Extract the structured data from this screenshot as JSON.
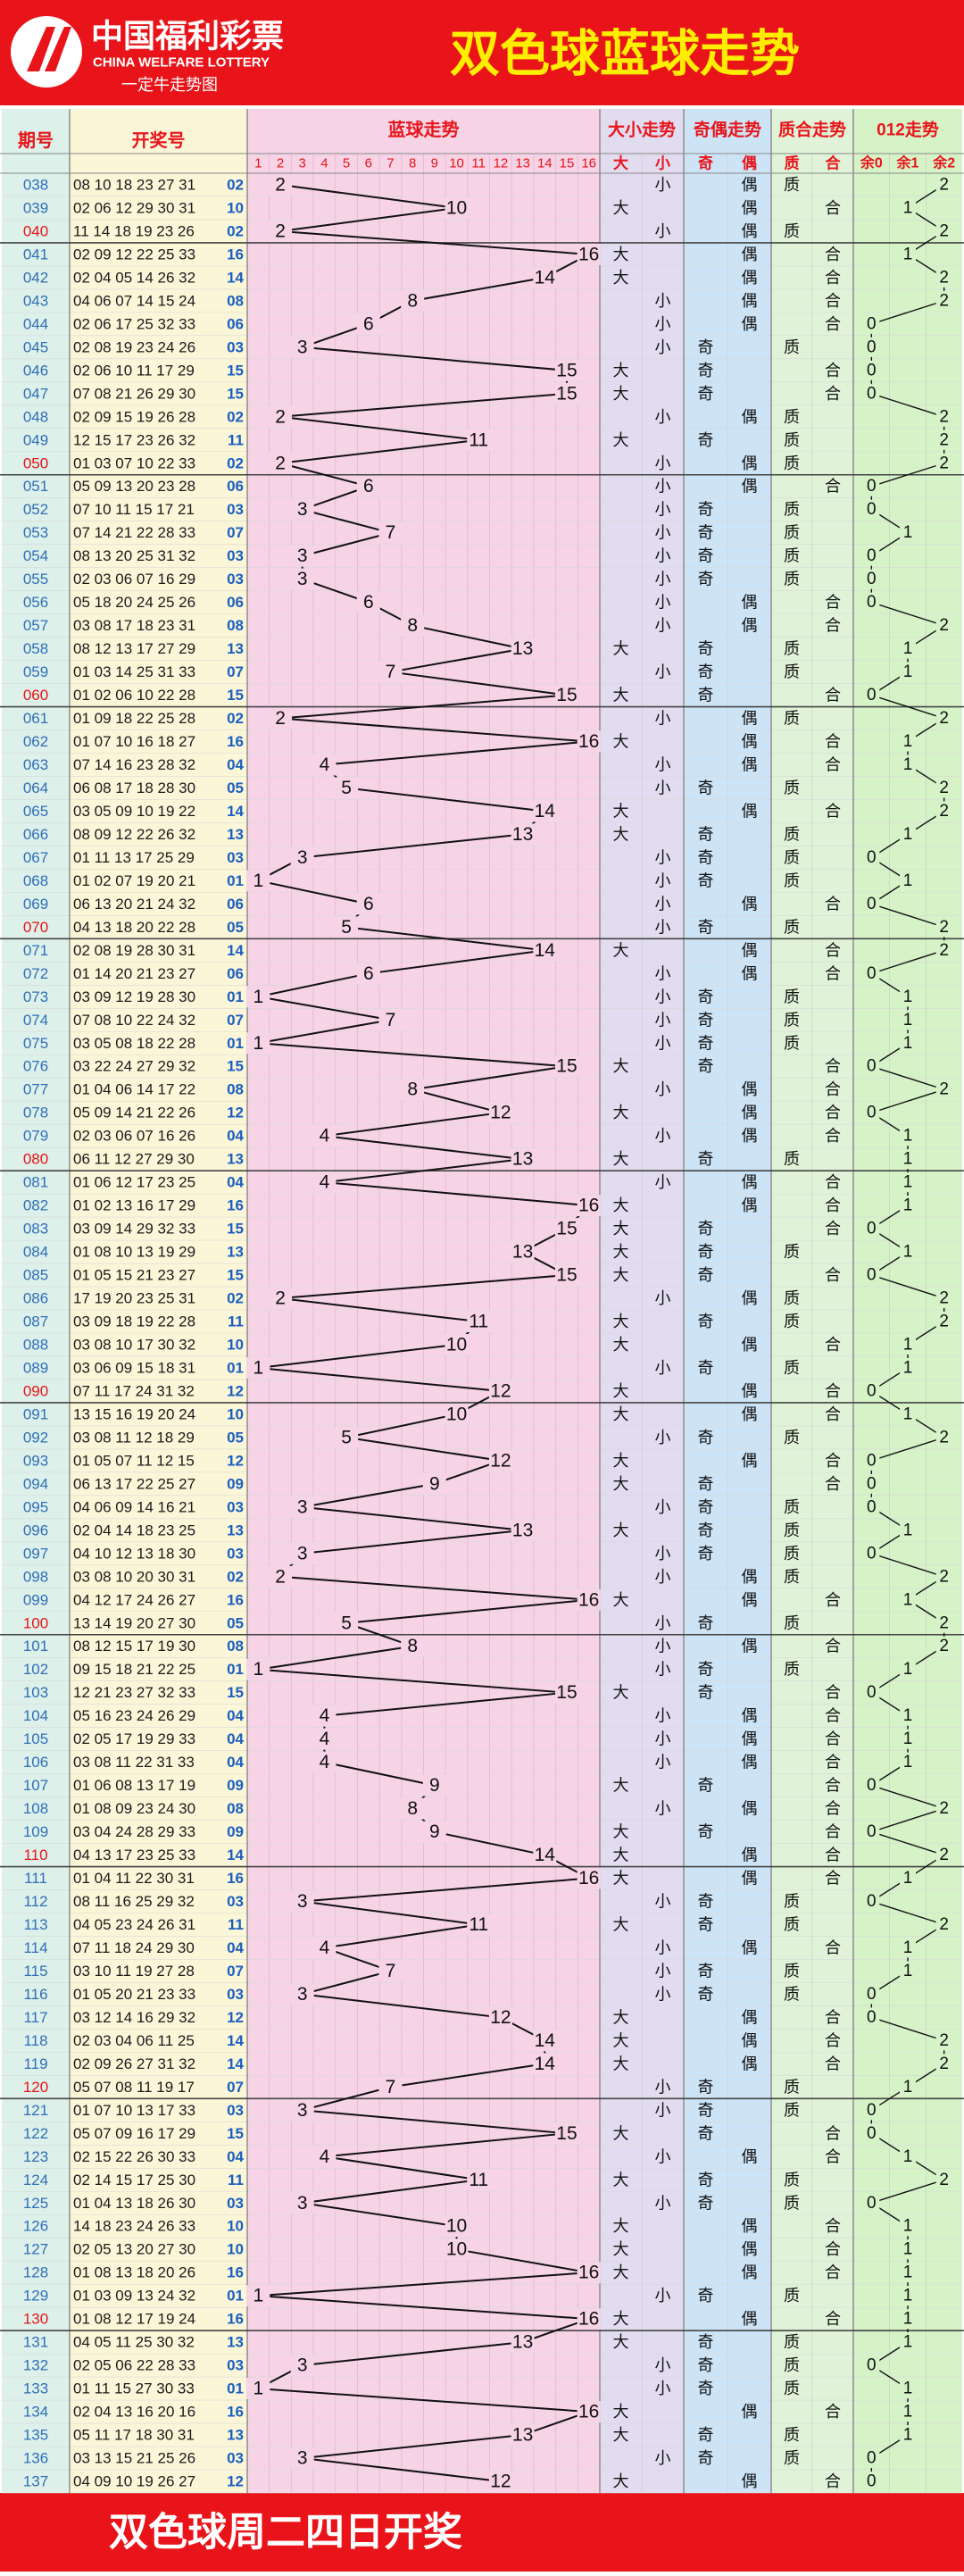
{
  "header": {
    "logo_cn": "中国福利彩票",
    "logo_en": "CHINA WELFARE LOTTERY",
    "logo_sub": "一定牛走势图",
    "title": "双色球蓝球走势",
    "footer": "双色球周二四日开奖"
  },
  "colors": {
    "red": "#e8141a",
    "issue_bg": "#ddf0ea",
    "numbers_bg": "#fbf6d8",
    "blue_bg": "#f6d4e6",
    "size_bg": "#e2dcf0",
    "parity_bg": "#cde4f6",
    "prime_bg": "#e0f3d8",
    "mod_bg": "#d6f3c8",
    "issue_text": "#2f6fb8",
    "highlight_issue": "#e8141a"
  },
  "chart_data": {
    "type": "table",
    "title": "双色球蓝球走势",
    "columns": {
      "issue": "期号",
      "numbers": "开奖号",
      "blue_trend": "蓝球走势",
      "size": "大小走势",
      "parity": "奇偶走势",
      "prime": "质合走势",
      "mod3": "012走势"
    },
    "subcolumns": {
      "blue": [
        "1",
        "2",
        "3",
        "4",
        "5",
        "6",
        "7",
        "8",
        "9",
        "10",
        "11",
        "12",
        "13",
        "14",
        "15",
        "16"
      ],
      "size": [
        "大",
        "小"
      ],
      "parity": [
        "奇",
        "偶"
      ],
      "prime": [
        "质",
        "合"
      ],
      "mod3": [
        "余0",
        "余1",
        "余2"
      ]
    },
    "labels": {
      "big": "大",
      "small": "小",
      "odd": "奇",
      "even": "偶",
      "prime": "质",
      "composite": "合",
      "m0": "0",
      "m1": "1",
      "m2": "2"
    },
    "rows": [
      {
        "issue": "038",
        "reds": "08 10 18 23 27 31",
        "blue": "02",
        "size": "小",
        "parity": "偶",
        "prime": "质",
        "mod": 2
      },
      {
        "issue": "039",
        "reds": "02 06 12 29 30 31",
        "blue": "10",
        "size": "大",
        "parity": "偶",
        "prime": "合",
        "mod": 1
      },
      {
        "issue": "040",
        "reds": "11 14 18 19 23 26",
        "blue": "02",
        "size": "小",
        "parity": "偶",
        "prime": "质",
        "mod": 2
      },
      {
        "issue": "041",
        "reds": "02 09 12 22 25 33",
        "blue": "16",
        "size": "大",
        "parity": "偶",
        "prime": "合",
        "mod": 1
      },
      {
        "issue": "042",
        "reds": "02 04 05 14 26 32",
        "blue": "14",
        "size": "大",
        "parity": "偶",
        "prime": "合",
        "mod": 2
      },
      {
        "issue": "043",
        "reds": "04 06 07 14 15 24",
        "blue": "08",
        "size": "小",
        "parity": "偶",
        "prime": "合",
        "mod": 2
      },
      {
        "issue": "044",
        "reds": "02 06 17 25 32 33",
        "blue": "06",
        "size": "小",
        "parity": "偶",
        "prime": "合",
        "mod": 0
      },
      {
        "issue": "045",
        "reds": "02 08 19 23 24 26",
        "blue": "03",
        "size": "小",
        "parity": "奇",
        "prime": "质",
        "mod": 0
      },
      {
        "issue": "046",
        "reds": "02 06 10 11 17 29",
        "blue": "15",
        "size": "大",
        "parity": "奇",
        "prime": "合",
        "mod": 0
      },
      {
        "issue": "047",
        "reds": "07 08 21 26 29 30",
        "blue": "15",
        "size": "大",
        "parity": "奇",
        "prime": "合",
        "mod": 0
      },
      {
        "issue": "048",
        "reds": "02 09 15 19 26 28",
        "blue": "02",
        "size": "小",
        "parity": "偶",
        "prime": "质",
        "mod": 2
      },
      {
        "issue": "049",
        "reds": "12 15 17 23 26 32",
        "blue": "11",
        "size": "大",
        "parity": "奇",
        "prime": "质",
        "mod": 2
      },
      {
        "issue": "050",
        "reds": "01 03 07 10 22 33",
        "blue": "02",
        "size": "小",
        "parity": "偶",
        "prime": "质",
        "mod": 2
      },
      {
        "issue": "051",
        "reds": "05 09 13 20 23 28",
        "blue": "06",
        "size": "小",
        "parity": "偶",
        "prime": "合",
        "mod": 0
      },
      {
        "issue": "052",
        "reds": "07 10 11 15 17 21",
        "blue": "03",
        "size": "小",
        "parity": "奇",
        "prime": "质",
        "mod": 0
      },
      {
        "issue": "053",
        "reds": "07 14 21 22 28 33",
        "blue": "07",
        "size": "小",
        "parity": "奇",
        "prime": "质",
        "mod": 1
      },
      {
        "issue": "054",
        "reds": "08 13 20 25 31 32",
        "blue": "03",
        "size": "小",
        "parity": "奇",
        "prime": "质",
        "mod": 0
      },
      {
        "issue": "055",
        "reds": "02 03 06 07 16 29",
        "blue": "03",
        "size": "小",
        "parity": "奇",
        "prime": "质",
        "mod": 0
      },
      {
        "issue": "056",
        "reds": "05 18 20 24 25 26",
        "blue": "06",
        "size": "小",
        "parity": "偶",
        "prime": "合",
        "mod": 0
      },
      {
        "issue": "057",
        "reds": "03 08 17 18 23 31",
        "blue": "08",
        "size": "小",
        "parity": "偶",
        "prime": "合",
        "mod": 2
      },
      {
        "issue": "058",
        "reds": "08 12 13 17 27 29",
        "blue": "13",
        "size": "大",
        "parity": "奇",
        "prime": "质",
        "mod": 1
      },
      {
        "issue": "059",
        "reds": "01 03 14 25 31 33",
        "blue": "07",
        "size": "小",
        "parity": "奇",
        "prime": "质",
        "mod": 1
      },
      {
        "issue": "060",
        "reds": "01 02 06 10 22 28",
        "blue": "15",
        "size": "大",
        "parity": "奇",
        "prime": "合",
        "mod": 0
      },
      {
        "issue": "061",
        "reds": "01 09 18 22 25 28",
        "blue": "02",
        "size": "小",
        "parity": "偶",
        "prime": "质",
        "mod": 2
      },
      {
        "issue": "062",
        "reds": "01 07 10 16 18 27",
        "blue": "16",
        "size": "大",
        "parity": "偶",
        "prime": "合",
        "mod": 1
      },
      {
        "issue": "063",
        "reds": "07 14 16 23 28 32",
        "blue": "04",
        "size": "小",
        "parity": "偶",
        "prime": "合",
        "mod": 1
      },
      {
        "issue": "064",
        "reds": "06 08 17 18 28 30",
        "blue": "05",
        "size": "小",
        "parity": "奇",
        "prime": "质",
        "mod": 2
      },
      {
        "issue": "065",
        "reds": "03 05 09 10 19 22",
        "blue": "14",
        "size": "大",
        "parity": "偶",
        "prime": "合",
        "mod": 2
      },
      {
        "issue": "066",
        "reds": "08 09 12 22 26 32",
        "blue": "13",
        "size": "大",
        "parity": "奇",
        "prime": "质",
        "mod": 1
      },
      {
        "issue": "067",
        "reds": "01 11 13 17 25 29",
        "blue": "03",
        "size": "小",
        "parity": "奇",
        "prime": "质",
        "mod": 0
      },
      {
        "issue": "068",
        "reds": "01 02 07 19 20 21",
        "blue": "01",
        "size": "小",
        "parity": "奇",
        "prime": "质",
        "mod": 1
      },
      {
        "issue": "069",
        "reds": "06 13 20 21 24 32",
        "blue": "06",
        "size": "小",
        "parity": "偶",
        "prime": "合",
        "mod": 0
      },
      {
        "issue": "070",
        "reds": "04 13 18 20 22 28",
        "blue": "05",
        "size": "小",
        "parity": "奇",
        "prime": "质",
        "mod": 2
      },
      {
        "issue": "071",
        "reds": "02 08 19 28 30 31",
        "blue": "14",
        "size": "大",
        "parity": "偶",
        "prime": "合",
        "mod": 2
      },
      {
        "issue": "072",
        "reds": "01 14 20 21 23 27",
        "blue": "06",
        "size": "小",
        "parity": "偶",
        "prime": "合",
        "mod": 0
      },
      {
        "issue": "073",
        "reds": "03 09 12 19 28 30",
        "blue": "01",
        "size": "小",
        "parity": "奇",
        "prime": "质",
        "mod": 1
      },
      {
        "issue": "074",
        "reds": "07 08 10 22 24 32",
        "blue": "07",
        "size": "小",
        "parity": "奇",
        "prime": "质",
        "mod": 1
      },
      {
        "issue": "075",
        "reds": "03 05 08 18 22 28",
        "blue": "01",
        "size": "小",
        "parity": "奇",
        "prime": "质",
        "mod": 1
      },
      {
        "issue": "076",
        "reds": "03 22 24 27 29 32",
        "blue": "15",
        "size": "大",
        "parity": "奇",
        "prime": "合",
        "mod": 0
      },
      {
        "issue": "077",
        "reds": "01 04 06 14 17 22",
        "blue": "08",
        "size": "小",
        "parity": "偶",
        "prime": "合",
        "mod": 2
      },
      {
        "issue": "078",
        "reds": "05 09 14 21 22 26",
        "blue": "12",
        "size": "大",
        "parity": "偶",
        "prime": "合",
        "mod": 0
      },
      {
        "issue": "079",
        "reds": "02 03 06 07 16 26",
        "blue": "04",
        "size": "小",
        "parity": "偶",
        "prime": "合",
        "mod": 1
      },
      {
        "issue": "080",
        "reds": "06 11 12 27 29 30",
        "blue": "13",
        "size": "大",
        "parity": "奇",
        "prime": "质",
        "mod": 1
      },
      {
        "issue": "081",
        "reds": "01 06 12 17 23 25",
        "blue": "04",
        "size": "小",
        "parity": "偶",
        "prime": "合",
        "mod": 1
      },
      {
        "issue": "082",
        "reds": "01 02 13 16 17 29",
        "blue": "16",
        "size": "大",
        "parity": "偶",
        "prime": "合",
        "mod": 1
      },
      {
        "issue": "083",
        "reds": "03 09 14 29 32 33",
        "blue": "15",
        "size": "大",
        "parity": "奇",
        "prime": "合",
        "mod": 0
      },
      {
        "issue": "084",
        "reds": "01 08 10 13 19 29",
        "blue": "13",
        "size": "大",
        "parity": "奇",
        "prime": "质",
        "mod": 1
      },
      {
        "issue": "085",
        "reds": "01 05 15 21 23 27",
        "blue": "15",
        "size": "大",
        "parity": "奇",
        "prime": "合",
        "mod": 0
      },
      {
        "issue": "086",
        "reds": "17 19 20 23 25 31",
        "blue": "02",
        "size": "小",
        "parity": "偶",
        "prime": "质",
        "mod": 2
      },
      {
        "issue": "087",
        "reds": "03 09 18 19 22 28",
        "blue": "11",
        "size": "大",
        "parity": "奇",
        "prime": "质",
        "mod": 2
      },
      {
        "issue": "088",
        "reds": "03 08 10 17 30 32",
        "blue": "10",
        "size": "大",
        "parity": "偶",
        "prime": "合",
        "mod": 1
      },
      {
        "issue": "089",
        "reds": "03 06 09 15 18 31",
        "blue": "01",
        "size": "小",
        "parity": "奇",
        "prime": "质",
        "mod": 1
      },
      {
        "issue": "090",
        "reds": "07 11 17 24 31 32",
        "blue": "12",
        "size": "大",
        "parity": "偶",
        "prime": "合",
        "mod": 0
      },
      {
        "issue": "091",
        "reds": "13 15 16 19 20 24",
        "blue": "10",
        "size": "大",
        "parity": "偶",
        "prime": "合",
        "mod": 1
      },
      {
        "issue": "092",
        "reds": "03 08 11 12 18 29",
        "blue": "05",
        "size": "小",
        "parity": "奇",
        "prime": "质",
        "mod": 2
      },
      {
        "issue": "093",
        "reds": "01 05 07 11 12 15",
        "blue": "12",
        "size": "大",
        "parity": "偶",
        "prime": "合",
        "mod": 0
      },
      {
        "issue": "094",
        "reds": "06 13 17 22 25 27",
        "blue": "09",
        "size": "大",
        "parity": "奇",
        "prime": "合",
        "mod": 0
      },
      {
        "issue": "095",
        "reds": "04 06 09 14 16 21",
        "blue": "03",
        "size": "小",
        "parity": "奇",
        "prime": "质",
        "mod": 0
      },
      {
        "issue": "096",
        "reds": "02 04 14 18 23 25",
        "blue": "13",
        "size": "大",
        "parity": "奇",
        "prime": "质",
        "mod": 1
      },
      {
        "issue": "097",
        "reds": "04 10 12 13 18 30",
        "blue": "03",
        "size": "小",
        "parity": "奇",
        "prime": "质",
        "mod": 0
      },
      {
        "issue": "098",
        "reds": "03 08 10 20 30 31",
        "blue": "02",
        "size": "小",
        "parity": "偶",
        "prime": "质",
        "mod": 2
      },
      {
        "issue": "099",
        "reds": "04 12 17 24 26 27",
        "blue": "16",
        "size": "大",
        "parity": "偶",
        "prime": "合",
        "mod": 1
      },
      {
        "issue": "100",
        "reds": "13 14 19 20 27 30",
        "blue": "05",
        "size": "小",
        "parity": "奇",
        "prime": "质",
        "mod": 2
      },
      {
        "issue": "101",
        "reds": "08 12 15 17 19 30",
        "blue": "08",
        "size": "小",
        "parity": "偶",
        "prime": "合",
        "mod": 2
      },
      {
        "issue": "102",
        "reds": "09 15 18 21 22 25",
        "blue": "01",
        "size": "小",
        "parity": "奇",
        "prime": "质",
        "mod": 1
      },
      {
        "issue": "103",
        "reds": "12 21 23 27 32 33",
        "blue": "15",
        "size": "大",
        "parity": "奇",
        "prime": "合",
        "mod": 0
      },
      {
        "issue": "104",
        "reds": "05 16 23 24 26 29",
        "blue": "04",
        "size": "小",
        "parity": "偶",
        "prime": "合",
        "mod": 1
      },
      {
        "issue": "105",
        "reds": "02 05 17 19 29 33",
        "blue": "04",
        "size": "小",
        "parity": "偶",
        "prime": "合",
        "mod": 1
      },
      {
        "issue": "106",
        "reds": "03 08 11 22 31 33",
        "blue": "04",
        "size": "小",
        "parity": "偶",
        "prime": "合",
        "mod": 1
      },
      {
        "issue": "107",
        "reds": "01 06 08 13 17 19",
        "blue": "09",
        "size": "大",
        "parity": "奇",
        "prime": "合",
        "mod": 0
      },
      {
        "issue": "108",
        "reds": "01 08 09 23 24 30",
        "blue": "08",
        "size": "小",
        "parity": "偶",
        "prime": "合",
        "mod": 2
      },
      {
        "issue": "109",
        "reds": "03 04 24 28 29 33",
        "blue": "09",
        "size": "大",
        "parity": "奇",
        "prime": "合",
        "mod": 0
      },
      {
        "issue": "110",
        "reds": "04 13 17 23 25 33",
        "blue": "14",
        "size": "大",
        "parity": "偶",
        "prime": "合",
        "mod": 2
      },
      {
        "issue": "111",
        "reds": "01 04 11 22 30 31",
        "blue": "16",
        "size": "大",
        "parity": "偶",
        "prime": "合",
        "mod": 1
      },
      {
        "issue": "112",
        "reds": "08 11 16 25 29 32",
        "blue": "03",
        "size": "小",
        "parity": "奇",
        "prime": "质",
        "mod": 0
      },
      {
        "issue": "113",
        "reds": "04 05 23 24 26 31",
        "blue": "11",
        "size": "大",
        "parity": "奇",
        "prime": "质",
        "mod": 2
      },
      {
        "issue": "114",
        "reds": "07 11 18 24 29 30",
        "blue": "04",
        "size": "小",
        "parity": "偶",
        "prime": "合",
        "mod": 1
      },
      {
        "issue": "115",
        "reds": "03 10 11 19 27 28",
        "blue": "07",
        "size": "小",
        "parity": "奇",
        "prime": "质",
        "mod": 1
      },
      {
        "issue": "116",
        "reds": "01 05 20 21 23 33",
        "blue": "03",
        "size": "小",
        "parity": "奇",
        "prime": "质",
        "mod": 0
      },
      {
        "issue": "117",
        "reds": "03 12 14 16 29 32",
        "blue": "12",
        "size": "大",
        "parity": "偶",
        "prime": "合",
        "mod": 0
      },
      {
        "issue": "118",
        "reds": "02 03 04 06 11 25",
        "blue": "14",
        "size": "大",
        "parity": "偶",
        "prime": "合",
        "mod": 2
      },
      {
        "issue": "119",
        "reds": "02 09 26 27 31 32",
        "blue": "14",
        "size": "大",
        "parity": "偶",
        "prime": "合",
        "mod": 2
      },
      {
        "issue": "120",
        "reds": "05 07 08 11 19 17",
        "blue": "07",
        "size": "小",
        "parity": "奇",
        "prime": "质",
        "mod": 1
      },
      {
        "issue": "121",
        "reds": "01 07 10 13 17 33",
        "blue": "03",
        "size": "小",
        "parity": "奇",
        "prime": "质",
        "mod": 0
      },
      {
        "issue": "122",
        "reds": "05 07 09 16 17 29",
        "blue": "15",
        "size": "大",
        "parity": "奇",
        "prime": "合",
        "mod": 0
      },
      {
        "issue": "123",
        "reds": "02 15 22 26 30 33",
        "blue": "04",
        "size": "小",
        "parity": "偶",
        "prime": "合",
        "mod": 1
      },
      {
        "issue": "124",
        "reds": "02 14 15 17 25 30",
        "blue": "11",
        "size": "大",
        "parity": "奇",
        "prime": "质",
        "mod": 2
      },
      {
        "issue": "125",
        "reds": "01 04 13 18 26 30",
        "blue": "03",
        "size": "小",
        "parity": "奇",
        "prime": "质",
        "mod": 0
      },
      {
        "issue": "126",
        "reds": "14 18 23 24 26 33",
        "blue": "10",
        "size": "大",
        "parity": "偶",
        "prime": "合",
        "mod": 1
      },
      {
        "issue": "127",
        "reds": "02 05 13 20 27 30",
        "blue": "10",
        "size": "大",
        "parity": "偶",
        "prime": "合",
        "mod": 1
      },
      {
        "issue": "128",
        "reds": "01 08 13 18 20 26",
        "blue": "16",
        "size": "大",
        "parity": "偶",
        "prime": "合",
        "mod": 1
      },
      {
        "issue": "129",
        "reds": "01 03 09 13 24 32",
        "blue": "01",
        "size": "小",
        "parity": "奇",
        "prime": "质",
        "mod": 1
      },
      {
        "issue": "130",
        "reds": "01 08 12 17 19 24",
        "blue": "16",
        "size": "大",
        "parity": "偶",
        "prime": "合",
        "mod": 1
      },
      {
        "issue": "131",
        "reds": "04 05 11 25 30 32",
        "blue": "13",
        "size": "大",
        "parity": "奇",
        "prime": "质",
        "mod": 1
      },
      {
        "issue": "132",
        "reds": "02 05 06 22 28 33",
        "blue": "03",
        "size": "小",
        "parity": "奇",
        "prime": "质",
        "mod": 0
      },
      {
        "issue": "133",
        "reds": "01 11 15 27 30 33",
        "blue": "01",
        "size": "小",
        "parity": "奇",
        "prime": "质",
        "mod": 1
      },
      {
        "issue": "134",
        "reds": "02 04 13 16 20 16",
        "blue": "16",
        "size": "大",
        "parity": "偶",
        "prime": "合",
        "mod": 1
      },
      {
        "issue": "135",
        "reds": "05 11 17 18 30 31",
        "blue": "13",
        "size": "大",
        "parity": "奇",
        "prime": "质",
        "mod": 1
      },
      {
        "issue": "136",
        "reds": "03 13 15 21 25 26",
        "blue": "03",
        "size": "小",
        "parity": "奇",
        "prime": "质",
        "mod": 0
      },
      {
        "issue": "137",
        "reds": "04 09 10 19 26 27",
        "blue": "12",
        "size": "大",
        "parity": "偶",
        "prime": "合",
        "mod": 0
      }
    ]
  }
}
